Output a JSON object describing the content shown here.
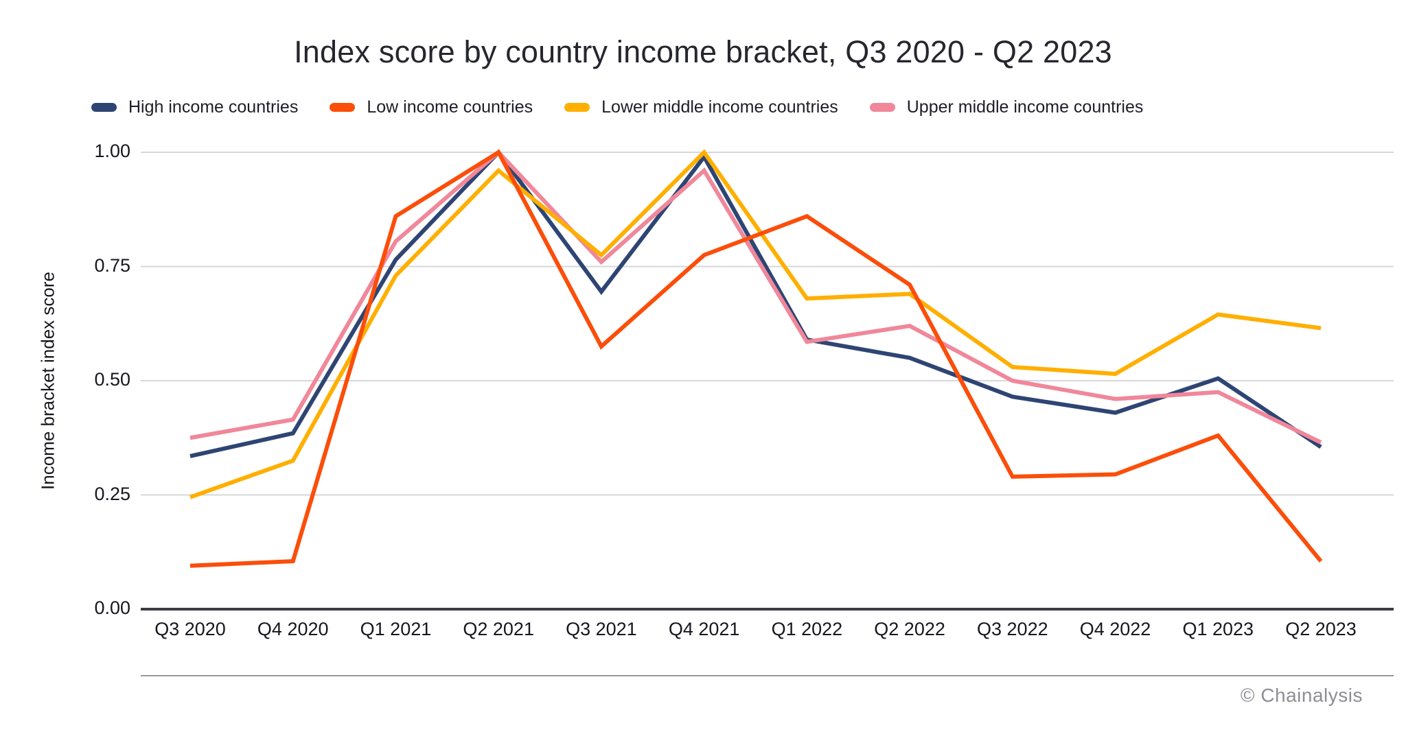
{
  "title": "Index score by country income bracket, Q3 2020 - Q2 2023",
  "footer": {
    "credit": "© Chainalysis"
  },
  "colors": {
    "grid": "#d7d7da",
    "axis": "#3c3c43",
    "divider": "#97979e",
    "text": "#16161e",
    "muted": "#8d8d95"
  },
  "chart_data": {
    "type": "line",
    "title": "Index score by country income bracket, Q3 2020 - Q2 2023",
    "xlabel": "",
    "ylabel": "Income bracket index score",
    "categories": [
      "Q3 2020",
      "Q4 2020",
      "Q1 2021",
      "Q2 2021",
      "Q3 2021",
      "Q4 2021",
      "Q1 2022",
      "Q2 2022",
      "Q3 2022",
      "Q4 2022",
      "Q1 2023",
      "Q2 2023"
    ],
    "series": [
      {
        "name": "High income countries",
        "color": "#2e4573",
        "values": [
          0.335,
          0.385,
          0.765,
          1.0,
          0.695,
          0.99,
          0.59,
          0.55,
          0.465,
          0.43,
          0.505,
          0.355
        ]
      },
      {
        "name": "Low income countries",
        "color": "#fb4e0a",
        "values": [
          0.095,
          0.105,
          0.86,
          1.0,
          0.575,
          0.775,
          0.86,
          0.71,
          0.29,
          0.295,
          0.38,
          0.105
        ]
      },
      {
        "name": "Lower middle income countries",
        "color": "#ffaf00",
        "values": [
          0.245,
          0.325,
          0.73,
          0.96,
          0.775,
          1.0,
          0.68,
          0.69,
          0.53,
          0.515,
          0.645,
          0.615
        ]
      },
      {
        "name": "Upper middle income countries",
        "color": "#f0879a",
        "values": [
          0.375,
          0.415,
          0.805,
          1.0,
          0.76,
          0.96,
          0.585,
          0.62,
          0.5,
          0.46,
          0.475,
          0.365
        ]
      }
    ],
    "ylim": [
      0,
      1
    ],
    "yticks": {
      "values": [
        0,
        0.25,
        0.5,
        0.75,
        1
      ],
      "labels": [
        "0.00",
        "0.25",
        "0.50",
        "0.75",
        "1.00"
      ]
    },
    "grid": true,
    "legend_position": "top"
  }
}
